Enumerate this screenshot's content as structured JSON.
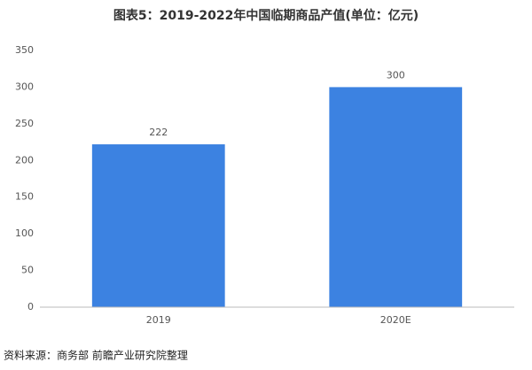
{
  "chart_data": {
    "type": "bar",
    "title": "图表5：2019-2022年中国临期商品产值(单位：亿元)",
    "categories": [
      "2019",
      "2020E"
    ],
    "values": [
      222,
      300
    ],
    "color": "#3c82e1",
    "ylim": [
      0,
      350
    ],
    "yticks": [
      0,
      50,
      100,
      150,
      200,
      250,
      300,
      350
    ],
    "grid": false,
    "source": "资料来源：商务部 前瞻产业研究院整理"
  }
}
